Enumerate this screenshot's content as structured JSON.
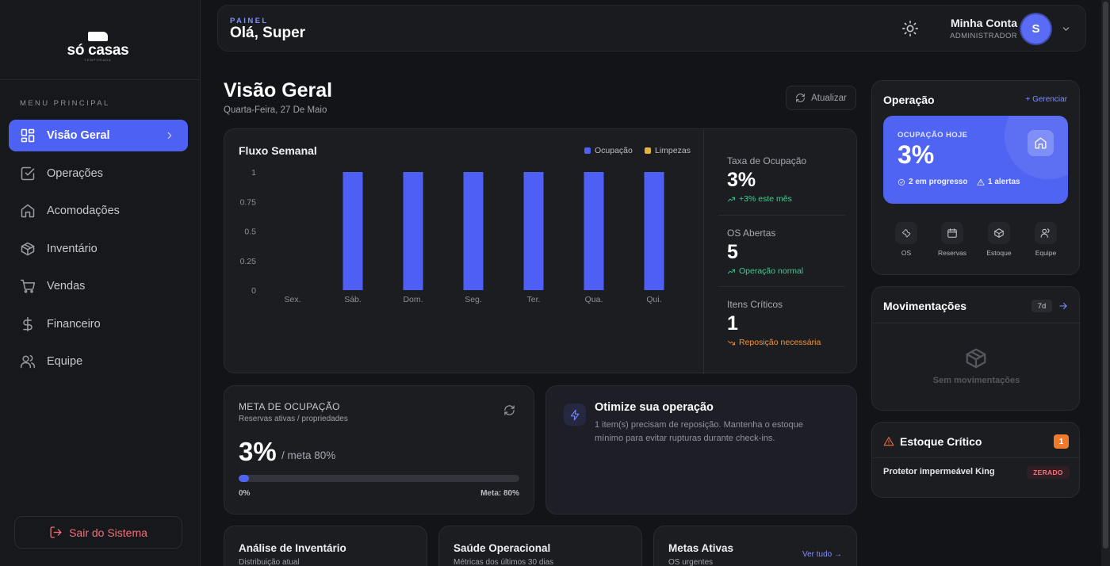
{
  "brand": {
    "name": "só casas",
    "tagline": "TEMPORADA"
  },
  "sidebar": {
    "menu_label": "MENU PRINCIPAL",
    "items": [
      {
        "label": "Visão Geral",
        "icon": "dashboard-icon",
        "active": true
      },
      {
        "label": "Operações",
        "icon": "checkbox-icon"
      },
      {
        "label": "Acomodações",
        "icon": "home-icon"
      },
      {
        "label": "Inventário",
        "icon": "box-icon"
      },
      {
        "label": "Vendas",
        "icon": "cart-icon"
      },
      {
        "label": "Financeiro",
        "icon": "dollar-icon"
      },
      {
        "label": "Equipe",
        "icon": "users-icon"
      }
    ],
    "logout_label": "Sair do Sistema"
  },
  "topbar": {
    "eyebrow": "PAINEL",
    "greeting": "Olá, Super",
    "account_name": "Minha Conta",
    "account_role": "ADMINISTRADOR",
    "avatar_initial": "S"
  },
  "header": {
    "title": "Visão Geral",
    "date": "Quarta-Feira, 27 De Maio",
    "refresh_label": "Atualizar"
  },
  "chart_card": {
    "title": "Fluxo Semanal"
  },
  "chart_data": {
    "type": "bar",
    "title": "Fluxo Semanal",
    "categories": [
      "Sex.",
      "Sáb.",
      "Dom.",
      "Seg.",
      "Ter.",
      "Qua.",
      "Qui."
    ],
    "series": [
      {
        "name": "Ocupação",
        "color": "#4d5ff5",
        "values": [
          0,
          1,
          1,
          1,
          1,
          1,
          1
        ]
      },
      {
        "name": "Limpezas",
        "color": "#e2b43c",
        "values": [
          0,
          0,
          0,
          0,
          0,
          0,
          0
        ]
      }
    ],
    "yticks": [
      "0",
      "0.25",
      "0.5",
      "0.75",
      "1"
    ],
    "ylim": [
      0,
      1
    ],
    "grid": false,
    "legend": "top-right"
  },
  "stats": [
    {
      "label": "Taxa de Ocupação",
      "value": "3%",
      "trend": "+3% este mês",
      "trend_color": "#3ecf8e",
      "trend_icon": "trend-up-icon"
    },
    {
      "label": "OS Abertas",
      "value": "5",
      "trend": "Operação normal",
      "trend_color": "#3ecf8e",
      "trend_icon": "trend-up-icon"
    },
    {
      "label": "Itens Críticos",
      "value": "1",
      "trend": "Reposição necessária",
      "trend_color": "#f0943c",
      "trend_icon": "trend-down-icon"
    }
  ],
  "meta": {
    "title": "META DE OCUPAÇÃO",
    "subtitle": "Reservas ativas / propriedades",
    "value": "3%",
    "goal": "/ meta 80%",
    "progress": 0.0375,
    "min_label": "0%",
    "max_label": "Meta: 80%"
  },
  "tip": {
    "title": "Otimize sua operação",
    "body": "1 item(s) precisam de reposição. Mantenha o estoque mínimo para evitar rupturas durante check-ins."
  },
  "bottom_cards": {
    "inventory": {
      "title": "Análise de Inventário",
      "subtitle": "Distribuição atual"
    },
    "health": {
      "title": "Saúde Operacional",
      "subtitle": "Métricas dos últimos 30 dias"
    },
    "goals": {
      "title": "Metas Ativas",
      "subtitle": "OS urgentes",
      "link": "Ver tudo →"
    }
  },
  "operacao": {
    "title": "Operação",
    "manage": "+ Gerenciar",
    "occupancy_label": "OCUPAÇÃO HOJE",
    "occupancy_value": "3%",
    "in_progress": "2 em progresso",
    "alerts": "1 alertas",
    "quick_actions": [
      {
        "label": "OS",
        "icon": "wrench-icon"
      },
      {
        "label": "Reservas",
        "icon": "calendar-icon"
      },
      {
        "label": "Estoque",
        "icon": "box-icon"
      },
      {
        "label": "Equipe",
        "icon": "users-icon"
      }
    ]
  },
  "movimentacoes": {
    "title": "Movimentações",
    "range": "7d",
    "empty": "Sem movimentações"
  },
  "estoque": {
    "title": "Estoque Crítico",
    "count": "1",
    "item": "Protetor impermeável King",
    "status": "ZERADO"
  },
  "colors": {
    "accent": "#4d62f2",
    "background": "#131417",
    "card": "#1c1d21",
    "danger": "#f07178"
  }
}
